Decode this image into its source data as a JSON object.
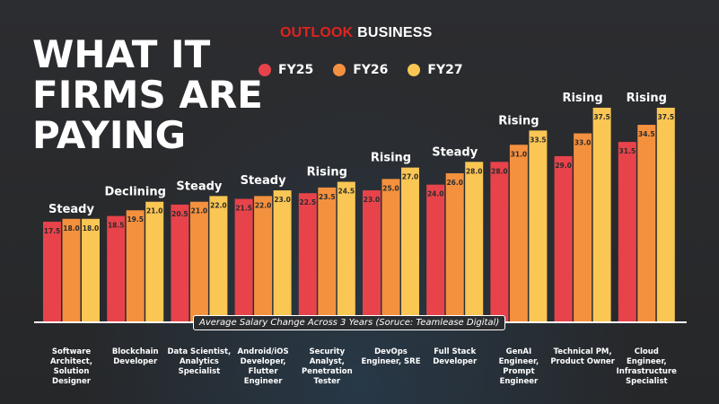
{
  "brand": {
    "part1": "OUTLOOK",
    "part2": "BUSINESS"
  },
  "headline": {
    "line1": "WHAT IT",
    "line2": "FIRMS ARE",
    "line3": "PAYING"
  },
  "caption": "Average Salary Change Across 3 Years (Soruce: Teamlease Digital)",
  "colors": {
    "FY25": "#e8434b",
    "FY26": "#f4913f",
    "FY27": "#fac654",
    "background": "#2a2b2e"
  },
  "chart_data": {
    "type": "bar",
    "categories": [
      [
        "Software",
        "Architect,",
        "Solution",
        "Designer"
      ],
      [
        "Blockchain",
        "Developer"
      ],
      [
        "Data Scientist,",
        "Analytics",
        "Specialist"
      ],
      [
        "Android/iOS",
        "Developer,",
        "Flutter",
        "Engineer"
      ],
      [
        "Security",
        "Analyst,",
        "Penetration",
        "Tester"
      ],
      [
        "DevOps",
        "Engineer, SRE"
      ],
      [
        "Full Stack",
        "Developer"
      ],
      [
        "GenAI",
        "Engineer,",
        "Prompt",
        "Engineer"
      ],
      [
        "Technical PM,",
        "Product Owner"
      ],
      [
        "Cloud",
        "Engineer,",
        "Infrastructure",
        "Specialist"
      ]
    ],
    "trends": [
      "Steady",
      "Declining",
      "Steady",
      "Steady",
      "Rising",
      "Rising",
      "Steady",
      "Rising",
      "Rising",
      "Rising"
    ],
    "series": [
      {
        "name": "FY25",
        "values": [
          17.5,
          18.5,
          20.5,
          21.5,
          22.5,
          23.0,
          24.0,
          28.0,
          29.0,
          31.5
        ]
      },
      {
        "name": "FY26",
        "values": [
          18.0,
          19.5,
          21.0,
          22.0,
          23.5,
          25.0,
          26.0,
          31.0,
          33.0,
          34.5
        ]
      },
      {
        "name": "FY27",
        "values": [
          18.0,
          21.0,
          22.0,
          23.0,
          24.5,
          27.0,
          28.0,
          33.5,
          37.5,
          37.5
        ]
      }
    ],
    "data_labels": true,
    "ylim": [
      0,
      37.5
    ],
    "grid": false,
    "legend": "top"
  }
}
